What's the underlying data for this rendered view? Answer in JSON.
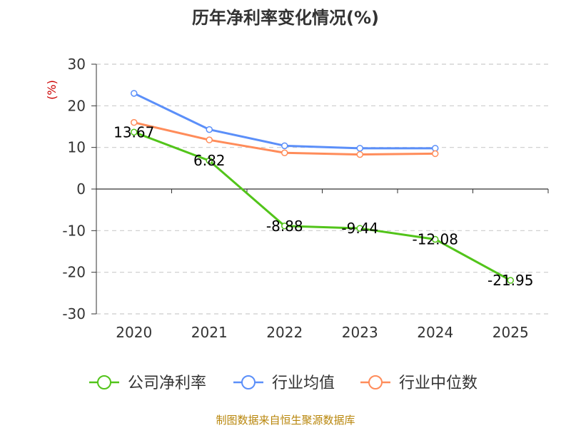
{
  "chart_data": {
    "type": "line",
    "title": "历年净利率变化情况(%)",
    "ylabel": "(%)",
    "xlabel": "",
    "ylim": [
      -30,
      30
    ],
    "yticks": [
      30,
      20,
      10,
      0,
      -10,
      -20,
      -30
    ],
    "categories": [
      "2020",
      "2021",
      "2022",
      "2023",
      "2024",
      "2025"
    ],
    "series": [
      {
        "name": "公司净利率",
        "color": "#52c41a",
        "values": [
          13.67,
          6.82,
          -8.88,
          -9.44,
          -12.08,
          -21.95
        ],
        "labels": [
          "13.67",
          "6.82",
          "-8.88",
          "-9.44",
          "-12.08",
          "-21.95"
        ]
      },
      {
        "name": "行业均值",
        "color": "#5b8ff9",
        "values": [
          23.0,
          14.3,
          10.4,
          9.8,
          9.8,
          null
        ]
      },
      {
        "name": "行业中位数",
        "color": "#ff8c5a",
        "values": [
          16.0,
          11.8,
          8.7,
          8.3,
          8.5,
          null
        ]
      }
    ],
    "legend_position": "bottom",
    "grid": true
  },
  "footer": {
    "source": "制图数据来自恒生聚源数据库"
  }
}
